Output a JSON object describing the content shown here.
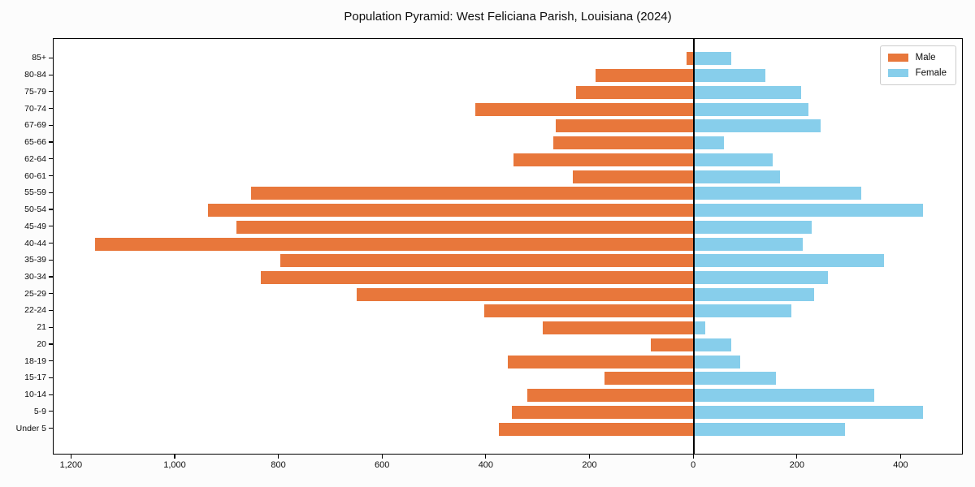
{
  "page": {
    "background": "#fcfcfc",
    "plot_background": "#ffffff",
    "axis_color": "#000000"
  },
  "chart_data": {
    "type": "bar",
    "variant": "population-pyramid",
    "title": "Population Pyramid: West Feliciana Parish, Louisiana (2024)",
    "orientation": "horizontal-diverging",
    "grid": false,
    "zero_line": true,
    "categories": [
      "85+",
      "80-84",
      "75-79",
      "70-74",
      "67-69",
      "65-66",
      "62-64",
      "60-61",
      "55-59",
      "50-54",
      "45-49",
      "40-44",
      "35-39",
      "30-34",
      "25-29",
      "22-24",
      "21",
      "20",
      "18-19",
      "15-17",
      "10-14",
      "5-9",
      "Under 5"
    ],
    "series": [
      {
        "name": "Male",
        "side": "left",
        "color": "#e8773b",
        "values": [
          14,
          190,
          228,
          421,
          267,
          272,
          348,
          234,
          855,
          938,
          883,
          1155,
          798,
          835,
          650,
          404,
          292,
          83,
          359,
          173,
          321,
          351,
          376
        ]
      },
      {
        "name": "Female",
        "side": "right",
        "color": "#87ceeb",
        "values": [
          72,
          138,
          207,
          221,
          245,
          58,
          152,
          166,
          322,
          442,
          227,
          210,
          367,
          259,
          231,
          188,
          22,
          72,
          89,
          158,
          347,
          441,
          292
        ]
      }
    ],
    "xlim": [
      -1235,
      520
    ],
    "x_ticks": [
      {
        "value": -1200,
        "label": "1,200"
      },
      {
        "value": -1000,
        "label": "1,000"
      },
      {
        "value": -800,
        "label": "800"
      },
      {
        "value": -600,
        "label": "600"
      },
      {
        "value": -400,
        "label": "400"
      },
      {
        "value": -200,
        "label": "200"
      },
      {
        "value": 0,
        "label": "0"
      },
      {
        "value": 200,
        "label": "200"
      },
      {
        "value": 400,
        "label": "400"
      }
    ],
    "legend": {
      "position": "top-right"
    }
  }
}
